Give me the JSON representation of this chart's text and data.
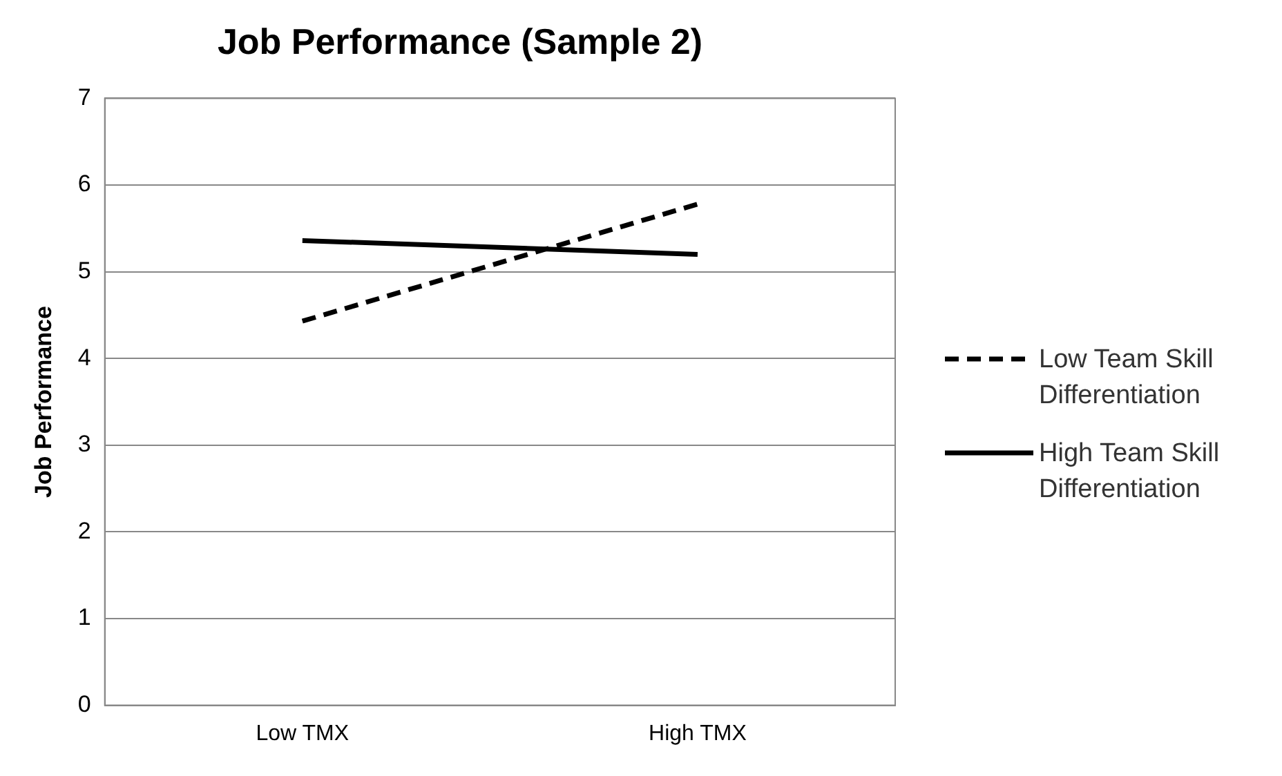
{
  "chart_data": {
    "type": "line",
    "title": "Job Performance (Sample 2)",
    "ylabel": "Job Performance",
    "categories": [
      "Low TMX",
      "High TMX"
    ],
    "ylim": [
      0,
      7
    ],
    "yticks": [
      0,
      1,
      2,
      3,
      4,
      5,
      6,
      7
    ],
    "grid": "y",
    "legend": "right",
    "marker": "none",
    "series": [
      {
        "name": "Low Team Skill Differentiation",
        "color": "#000000",
        "line_style": "dashed",
        "values": [
          4.43,
          5.78
        ]
      },
      {
        "name": "High Team Skill Differentiation",
        "color": "#000000",
        "line_style": "solid",
        "values": [
          5.36,
          5.2
        ]
      }
    ]
  }
}
